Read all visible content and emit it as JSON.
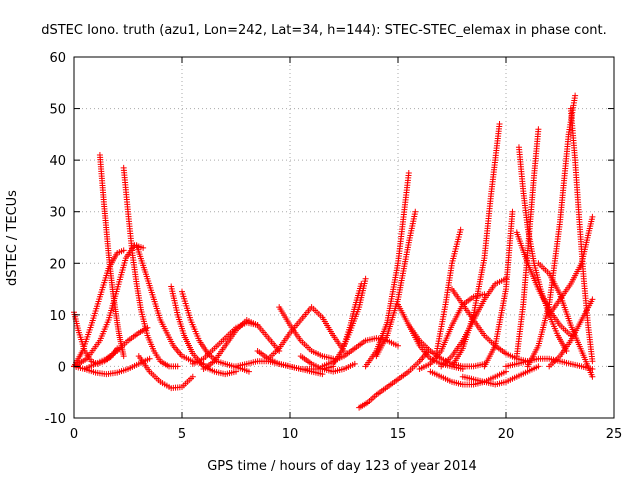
{
  "chart_data": {
    "type": "scatter",
    "title": "dSTEC Iono. truth (azu1, Lon=242, Lat=34, h=144): STEC-STEC_elemax in phase cont.",
    "xlabel": "GPS time / hours of day 123 of year 2014",
    "ylabel": "dSTEC  / TECUs",
    "xlim": [
      0,
      25
    ],
    "ylim": [
      -10,
      60
    ],
    "xticks": [
      0,
      5,
      10,
      15,
      20,
      25
    ],
    "yticks": [
      -10,
      0,
      10,
      20,
      30,
      40,
      50,
      60
    ],
    "grid": true,
    "marker": "+",
    "color": "#ff0000",
    "series": [
      {
        "x": [
          0.0,
          0.6,
          1.2,
          1.6,
          2.0,
          2.4,
          2.8,
          3.2
        ],
        "y": [
          0.0,
          1.5,
          5.0,
          9.0,
          15.0,
          21.0,
          23.5,
          23.0
        ]
      },
      {
        "x": [
          0.0,
          0.2,
          0.5,
          0.8,
          1.1,
          1.4,
          1.7,
          2.0
        ],
        "y": [
          10.5,
          7.0,
          3.0,
          1.0,
          0.5,
          1.0,
          1.8,
          3.5
        ]
      },
      {
        "x": [
          0.0,
          0.4,
          0.8,
          1.2,
          1.6,
          2.0,
          2.3
        ],
        "y": [
          0.0,
          3.0,
          8.0,
          13.5,
          19.0,
          22.0,
          22.5
        ]
      },
      {
        "x": [
          1.2,
          1.3,
          1.4,
          1.5,
          1.6,
          1.7,
          1.8,
          1.9,
          2.0,
          2.1,
          2.2,
          2.3
        ],
        "y": [
          41.0,
          36.0,
          31.0,
          26.5,
          22.0,
          18.0,
          14.5,
          11.5,
          8.5,
          6.0,
          4.0,
          2.0
        ]
      },
      {
        "x": [
          0.5,
          1.0,
          1.5,
          2.0,
          2.5,
          3.0,
          3.4
        ],
        "y": [
          -0.5,
          0.5,
          1.5,
          3.0,
          5.0,
          6.5,
          7.5
        ]
      },
      {
        "x": [
          0.0,
          0.5,
          1.0,
          1.5,
          2.0,
          2.5,
          3.0,
          3.5
        ],
        "y": [
          0.0,
          -0.5,
          -1.2,
          -1.5,
          -1.2,
          -0.5,
          0.5,
          1.5
        ]
      },
      {
        "x": [
          2.3,
          2.5,
          2.7,
          2.9,
          3.1,
          3.4,
          3.7,
          4.0,
          4.4,
          4.8
        ],
        "y": [
          38.5,
          30.0,
          22.0,
          16.0,
          11.0,
          6.0,
          3.0,
          1.0,
          0.0,
          0.0
        ]
      },
      {
        "x": [
          2.9,
          3.4,
          4.0,
          4.6,
          5.0,
          5.5,
          6.0
        ],
        "y": [
          23.5,
          17.0,
          9.0,
          4.0,
          2.0,
          1.0,
          0.5
        ]
      },
      {
        "x": [
          3.0,
          3.5,
          4.0,
          4.5,
          5.0,
          5.5
        ],
        "y": [
          2.0,
          -1.0,
          -3.0,
          -4.2,
          -4.0,
          -2.0
        ]
      },
      {
        "x": [
          4.5,
          4.8,
          5.1,
          5.5,
          6.0,
          6.5,
          7.0,
          7.5
        ],
        "y": [
          15.5,
          10.0,
          6.0,
          2.5,
          0.0,
          -1.0,
          -1.5,
          -1.0
        ]
      },
      {
        "x": [
          5.0,
          5.4,
          5.8,
          6.2,
          6.6,
          7.0,
          7.4,
          7.8,
          8.1
        ],
        "y": [
          14.5,
          9.0,
          5.0,
          2.5,
          1.0,
          0.5,
          0.0,
          -0.5,
          -1.0
        ]
      },
      {
        "x": [
          5.5,
          6.0,
          6.5,
          7.0,
          7.5,
          8.0,
          8.5
        ],
        "y": [
          0.5,
          1.5,
          3.5,
          5.5,
          7.5,
          8.5,
          8.0
        ]
      },
      {
        "x": [
          6.0,
          6.5,
          7.0,
          7.5,
          8.0,
          8.5,
          9.0,
          9.5
        ],
        "y": [
          -0.5,
          1.0,
          4.0,
          7.0,
          9.0,
          8.0,
          5.5,
          3.0
        ]
      },
      {
        "x": [
          7.5,
          8.0,
          8.5,
          9.0,
          9.5,
          10.0,
          10.5,
          11.0,
          11.5
        ],
        "y": [
          0.0,
          0.5,
          1.0,
          1.0,
          0.5,
          0.0,
          -0.5,
          -1.0,
          -1.5
        ]
      },
      {
        "x": [
          8.5,
          9.0,
          9.5,
          10.0,
          10.5,
          11.0,
          11.5,
          12.0
        ],
        "y": [
          3.0,
          1.5,
          0.5,
          0.0,
          -0.5,
          -0.5,
          -0.5,
          0.0
        ]
      },
      {
        "x": [
          9.0,
          9.5,
          10.0,
          10.5,
          11.0,
          11.5,
          12.0,
          12.5
        ],
        "y": [
          1.5,
          3.5,
          6.5,
          9.0,
          11.5,
          9.5,
          6.0,
          3.0
        ]
      },
      {
        "x": [
          9.5,
          10.0,
          10.5,
          11.0,
          11.5,
          12.0
        ],
        "y": [
          11.5,
          8.0,
          5.0,
          3.0,
          2.0,
          1.5
        ]
      },
      {
        "x": [
          10.5,
          11.0,
          11.5,
          12.0,
          12.5,
          13.0
        ],
        "y": [
          2.0,
          0.5,
          -0.5,
          -1.0,
          -0.5,
          0.5
        ]
      },
      {
        "x": [
          11.5,
          12.0,
          12.5,
          13.0,
          13.5,
          14.0,
          14.5,
          15.0
        ],
        "y": [
          0.0,
          1.0,
          2.0,
          3.5,
          5.0,
          5.5,
          5.0,
          4.0
        ]
      },
      {
        "x": [
          12.0,
          12.4,
          12.8,
          13.2,
          13.5
        ],
        "y": [
          0.5,
          3.0,
          7.0,
          11.5,
          17.0
        ]
      },
      {
        "x": [
          12.5,
          12.8,
          13.0,
          13.3
        ],
        "y": [
          4.0,
          8.0,
          11.5,
          16.0
        ]
      },
      {
        "x": [
          13.2,
          13.6,
          14.0,
          14.5,
          15.0,
          15.5,
          16.0,
          16.4
        ],
        "y": [
          -8.0,
          -7.0,
          -5.5,
          -4.0,
          -2.5,
          -1.0,
          1.0,
          3.0
        ]
      },
      {
        "x": [
          13.5,
          14.0,
          14.5,
          15.0,
          15.5
        ],
        "y": [
          0.0,
          3.0,
          8.5,
          20.0,
          37.5
        ]
      },
      {
        "x": [
          14.0,
          14.5,
          15.0,
          15.5,
          15.8
        ],
        "y": [
          2.0,
          6.0,
          13.0,
          24.0,
          30.0
        ]
      },
      {
        "x": [
          15.0,
          15.5,
          16.0,
          16.5,
          17.0,
          17.5,
          18.0
        ],
        "y": [
          12.0,
          8.0,
          4.0,
          1.5,
          0.5,
          0.0,
          -0.5
        ]
      },
      {
        "x": [
          15.5,
          16.0,
          16.5,
          17.0,
          17.5,
          18.0,
          18.5,
          19.0
        ],
        "y": [
          8.0,
          5.0,
          3.0,
          1.5,
          0.5,
          0.0,
          0.0,
          0.5
        ]
      },
      {
        "x": [
          16.0,
          16.5,
          17.0,
          17.5,
          18.0,
          18.5,
          19.0
        ],
        "y": [
          -0.5,
          0.5,
          3.0,
          8.0,
          12.0,
          13.5,
          14.0
        ]
      },
      {
        "x": [
          16.5,
          17.0,
          17.5,
          18.0,
          18.5,
          19.0,
          19.5,
          20.0
        ],
        "y": [
          -1.0,
          -2.0,
          -3.0,
          -3.5,
          -3.5,
          -3.0,
          -2.0,
          -1.0
        ]
      },
      {
        "x": [
          16.8,
          17.2,
          17.5,
          17.9
        ],
        "y": [
          3.0,
          12.0,
          20.0,
          26.5
        ]
      },
      {
        "x": [
          17.0,
          17.5,
          18.0,
          18.5,
          19.0,
          19.5,
          20.0
        ],
        "y": [
          0.0,
          2.0,
          5.0,
          9.0,
          13.0,
          16.0,
          17.0
        ]
      },
      {
        "x": [
          17.5,
          18.0,
          18.5,
          19.0,
          19.5,
          20.0,
          20.5,
          21.0
        ],
        "y": [
          15.0,
          12.0,
          9.0,
          6.0,
          4.0,
          2.5,
          1.5,
          1.0
        ]
      },
      {
        "x": [
          17.5,
          18.0,
          18.5,
          19.0,
          19.3,
          19.7
        ],
        "y": [
          0.0,
          3.5,
          10.0,
          21.0,
          33.0,
          47.0
        ]
      },
      {
        "x": [
          18.0,
          18.5,
          19.0,
          19.5,
          20.0,
          20.5,
          21.0,
          21.5
        ],
        "y": [
          -2.0,
          -2.5,
          -3.0,
          -3.5,
          -3.0,
          -2.0,
          -1.0,
          0.0
        ]
      },
      {
        "x": [
          19.0,
          19.5,
          20.0,
          20.3
        ],
        "y": [
          0.0,
          4.0,
          15.0,
          30.0
        ]
      },
      {
        "x": [
          20.0,
          20.5,
          21.0,
          21.5,
          22.0,
          22.5,
          23.0,
          23.5,
          24.0
        ],
        "y": [
          0.0,
          0.5,
          1.0,
          1.5,
          1.5,
          1.0,
          0.5,
          0.0,
          -0.5
        ]
      },
      {
        "x": [
          20.6,
          20.8,
          21.0,
          21.3,
          21.6,
          22.0,
          22.4,
          22.8
        ],
        "y": [
          42.5,
          34.0,
          27.0,
          20.0,
          15.0,
          10.0,
          6.0,
          3.0
        ]
      },
      {
        "x": [
          20.5,
          20.8,
          21.0,
          21.3,
          21.5
        ],
        "y": [
          2.0,
          12.0,
          22.0,
          37.0,
          46.0
        ]
      },
      {
        "x": [
          20.5,
          21.0,
          21.5,
          22.0,
          22.5,
          23.0
        ],
        "y": [
          26.0,
          20.0,
          15.0,
          11.0,
          8.0,
          6.0
        ]
      },
      {
        "x": [
          21.0,
          21.5,
          22.0,
          22.5,
          22.9,
          23.2
        ],
        "y": [
          0.0,
          4.0,
          12.0,
          28.0,
          45.0,
          52.5
        ]
      },
      {
        "x": [
          23.0,
          23.2,
          23.4,
          23.6,
          23.8,
          24.0
        ],
        "y": [
          50.0,
          40.0,
          28.0,
          17.0,
          8.0,
          1.0
        ]
      },
      {
        "x": [
          22.0,
          22.5,
          23.0,
          23.5,
          24.0
        ],
        "y": [
          10.0,
          13.0,
          16.0,
          20.0,
          29.0
        ]
      },
      {
        "x": [
          22.0,
          22.5,
          23.0,
          23.5,
          24.0
        ],
        "y": [
          0.0,
          2.0,
          5.0,
          9.0,
          13.0
        ]
      },
      {
        "x": [
          21.5,
          22.0,
          22.5,
          23.0,
          23.5,
          24.0
        ],
        "y": [
          20.0,
          18.0,
          14.0,
          8.0,
          3.0,
          -2.0
        ]
      }
    ]
  }
}
